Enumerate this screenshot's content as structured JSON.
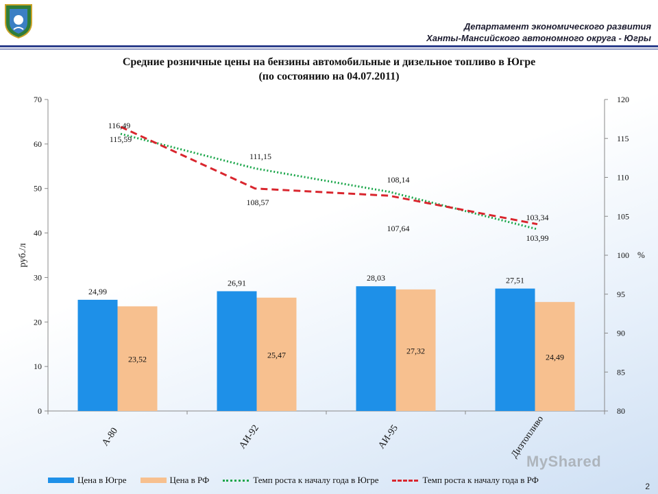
{
  "header": {
    "line1": "Департамент экономического развития",
    "line2": "Ханты-Мансийского автономного округа - Югры"
  },
  "title": {
    "line1": "Средние розничные цены на бензины автомобильные и дизельное топливо в Югре",
    "line2": "(по состоянию на 04.07.2011)"
  },
  "page_number": "2",
  "watermark": "MyShared",
  "colors": {
    "bar_ugra": "#1e90e8",
    "bar_rf": "#f7c08f",
    "line_ugra": "#1aa64a",
    "line_rf": "#d9262e"
  },
  "chart_data": {
    "type": "bar",
    "categories": [
      "А-80",
      "АИ-92",
      "АИ-95",
      "Дизтопливо"
    ],
    "series": [
      {
        "name": "Цена в Югре",
        "type": "bar",
        "axis": "left",
        "values": [
          24.99,
          26.91,
          28.03,
          27.51
        ],
        "labels": [
          "24,99",
          "26,91",
          "28,03",
          "27,51"
        ]
      },
      {
        "name": "Цена в РФ",
        "type": "bar",
        "axis": "left",
        "values": [
          23.52,
          25.47,
          27.32,
          24.49
        ],
        "labels": [
          "23,52",
          "25,47",
          "27,32",
          "24,49"
        ]
      },
      {
        "name": "Темп роста к началу года в Югре",
        "type": "line",
        "style": "dotted",
        "axis": "right",
        "values": [
          115.59,
          111.15,
          108.14,
          103.34
        ],
        "labels": [
          "115,59",
          "111,15",
          "108,14",
          "103,34"
        ]
      },
      {
        "name": "Темп роста к началу года в РФ",
        "type": "line",
        "style": "dashed",
        "axis": "right",
        "values": [
          116.49,
          108.57,
          107.64,
          103.99
        ],
        "labels": [
          "116,49",
          "108,57",
          "107,64",
          "103,99"
        ]
      }
    ],
    "ylabel": "руб./л",
    "y2label": "%",
    "ylim": [
      0,
      70
    ],
    "y2lim": [
      80,
      120
    ],
    "yticks": [
      "0",
      "10",
      "20",
      "30",
      "40",
      "50",
      "60",
      "70"
    ],
    "y2ticks": [
      "80",
      "85",
      "90",
      "95",
      "100",
      "105",
      "110",
      "115",
      "120"
    ],
    "grid": false,
    "legend": "bottom"
  }
}
